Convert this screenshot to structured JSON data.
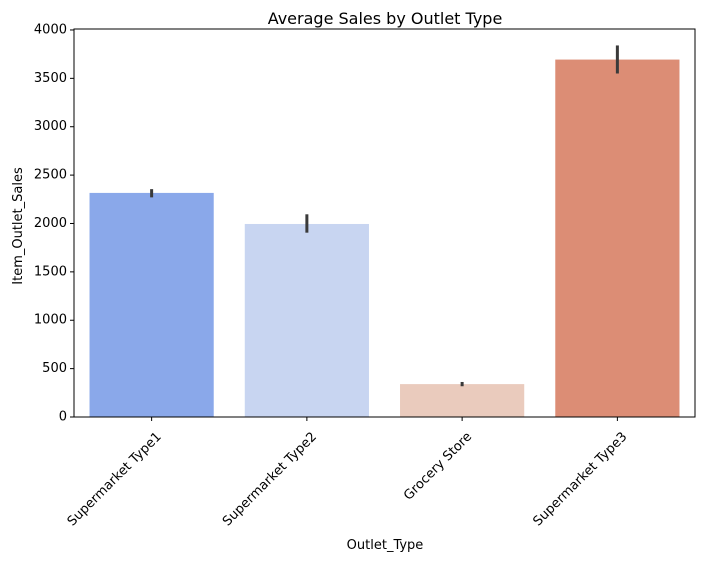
{
  "chart_data": {
    "type": "bar",
    "title": "Average Sales by Outlet Type",
    "xlabel": "Outlet_Type",
    "ylabel": "Item_Outlet_Sales",
    "categories": [
      "Supermarket Type1",
      "Supermarket Type2",
      "Grocery Store",
      "Supermarket Type3"
    ],
    "values": [
      2316,
      1995,
      340,
      3694
    ],
    "error_low": [
      2270,
      1905,
      318,
      3550
    ],
    "error_high": [
      2355,
      2095,
      362,
      3840
    ],
    "colors": [
      "#8aa8ea",
      "#c8d5f1",
      "#eacbbd",
      "#dc8d75"
    ],
    "error_color": "#3a3a3a",
    "ylim": [
      0,
      4000
    ],
    "yticks": [
      0,
      500,
      1000,
      1500,
      2000,
      2500,
      3000,
      3500,
      4000
    ],
    "grid": false,
    "legend": "none"
  }
}
